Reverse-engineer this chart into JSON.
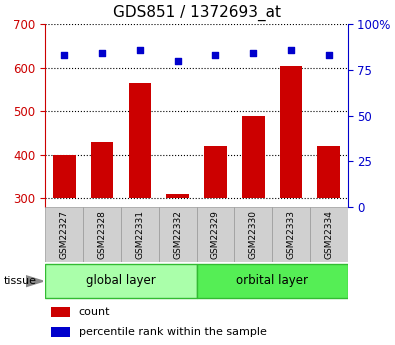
{
  "title": "GDS851 / 1372693_at",
  "samples": [
    "GSM22327",
    "GSM22328",
    "GSM22331",
    "GSM22332",
    "GSM22329",
    "GSM22330",
    "GSM22333",
    "GSM22334"
  ],
  "counts": [
    400,
    430,
    565,
    310,
    420,
    490,
    605,
    420
  ],
  "percentile_ranks": [
    83,
    84,
    86,
    80,
    83,
    84,
    86,
    83
  ],
  "ylim_left": [
    280,
    700
  ],
  "ylim_right": [
    0,
    100
  ],
  "yticks_left": [
    300,
    400,
    500,
    600,
    700
  ],
  "yticks_right": [
    0,
    25,
    50,
    75,
    100
  ],
  "groups": [
    {
      "label": "global layer",
      "start": 0,
      "end": 4,
      "color": "#aaffaa"
    },
    {
      "label": "orbital layer",
      "start": 4,
      "end": 8,
      "color": "#55ee55"
    }
  ],
  "bar_color": "#cc0000",
  "dot_color": "#0000cc",
  "bar_bottom": 300,
  "tissue_label": "tissue",
  "legend_count_label": "count",
  "legend_pct_label": "percentile rank within the sample",
  "tick_label_color_left": "#cc0000",
  "tick_label_color_right": "#0000cc",
  "title_color": "#000000",
  "sample_bg_color": "#d0d0d0",
  "sample_border_color": "#999999"
}
